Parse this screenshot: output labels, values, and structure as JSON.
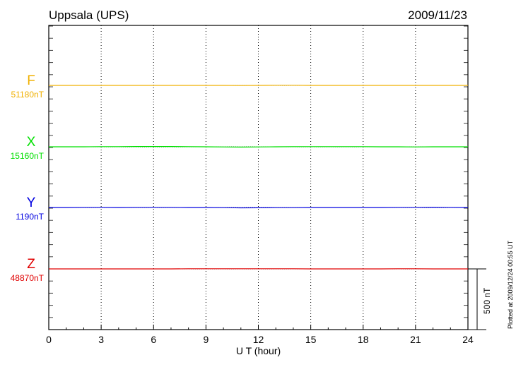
{
  "chart_data": {
    "type": "line",
    "title": "Uppsala (UPS)",
    "date": "2009/11/23",
    "xlabel": "U T (hour)",
    "xlim": [
      0,
      24
    ],
    "xticks": [
      "0",
      "3",
      "6",
      "9",
      "12",
      "15",
      "18",
      "21",
      "24"
    ],
    "grid": "vertical dotted every 3 hours",
    "scale_bar": "500 nT",
    "footer": "Plotted at 2009/12/24 00:55 UT",
    "x": [
      0,
      1,
      2,
      3,
      4,
      5,
      6,
      7,
      8,
      9,
      10,
      11,
      12,
      13,
      14,
      15,
      16,
      17,
      18,
      19,
      20,
      21,
      22,
      23,
      24
    ],
    "series": [
      {
        "name": "F",
        "baseline_label": "51180nT",
        "baseline": 51180,
        "color": "#f0b000",
        "values": [
          51180,
          51180,
          51180,
          51180,
          51180,
          51180,
          51180,
          51180,
          51180,
          51180,
          51180,
          51179,
          51180,
          51181,
          51181,
          51180,
          51180,
          51180,
          51180,
          51180,
          51180,
          51180,
          51180,
          51180,
          51180
        ]
      },
      {
        "name": "X",
        "baseline_label": "15160nT",
        "baseline": 15160,
        "color": "#00e000",
        "values": [
          15160,
          15160,
          15160,
          15161,
          15161,
          15162,
          15162,
          15162,
          15161,
          15160,
          15159,
          15158,
          15159,
          15160,
          15161,
          15161,
          15161,
          15161,
          15161,
          15160,
          15160,
          15159,
          15160,
          15160,
          15160
        ]
      },
      {
        "name": "Y",
        "baseline_label": "1190nT",
        "baseline": 1190,
        "color": "#0000e0",
        "values": [
          1190,
          1190,
          1191,
          1191,
          1190,
          1191,
          1191,
          1191,
          1190,
          1190,
          1189,
          1187,
          1188,
          1189,
          1189,
          1190,
          1190,
          1190,
          1190,
          1190,
          1191,
          1191,
          1192,
          1191,
          1190
        ]
      },
      {
        "name": "Z",
        "baseline_label": "48870nT",
        "baseline": 48870,
        "color": "#e00000",
        "values": [
          48870,
          48870,
          48870,
          48870,
          48870,
          48870,
          48870,
          48870,
          48871,
          48871,
          48871,
          48871,
          48871,
          48871,
          48871,
          48870,
          48870,
          48870,
          48870,
          48870,
          48871,
          48871,
          48870,
          48870,
          48870
        ]
      }
    ]
  }
}
